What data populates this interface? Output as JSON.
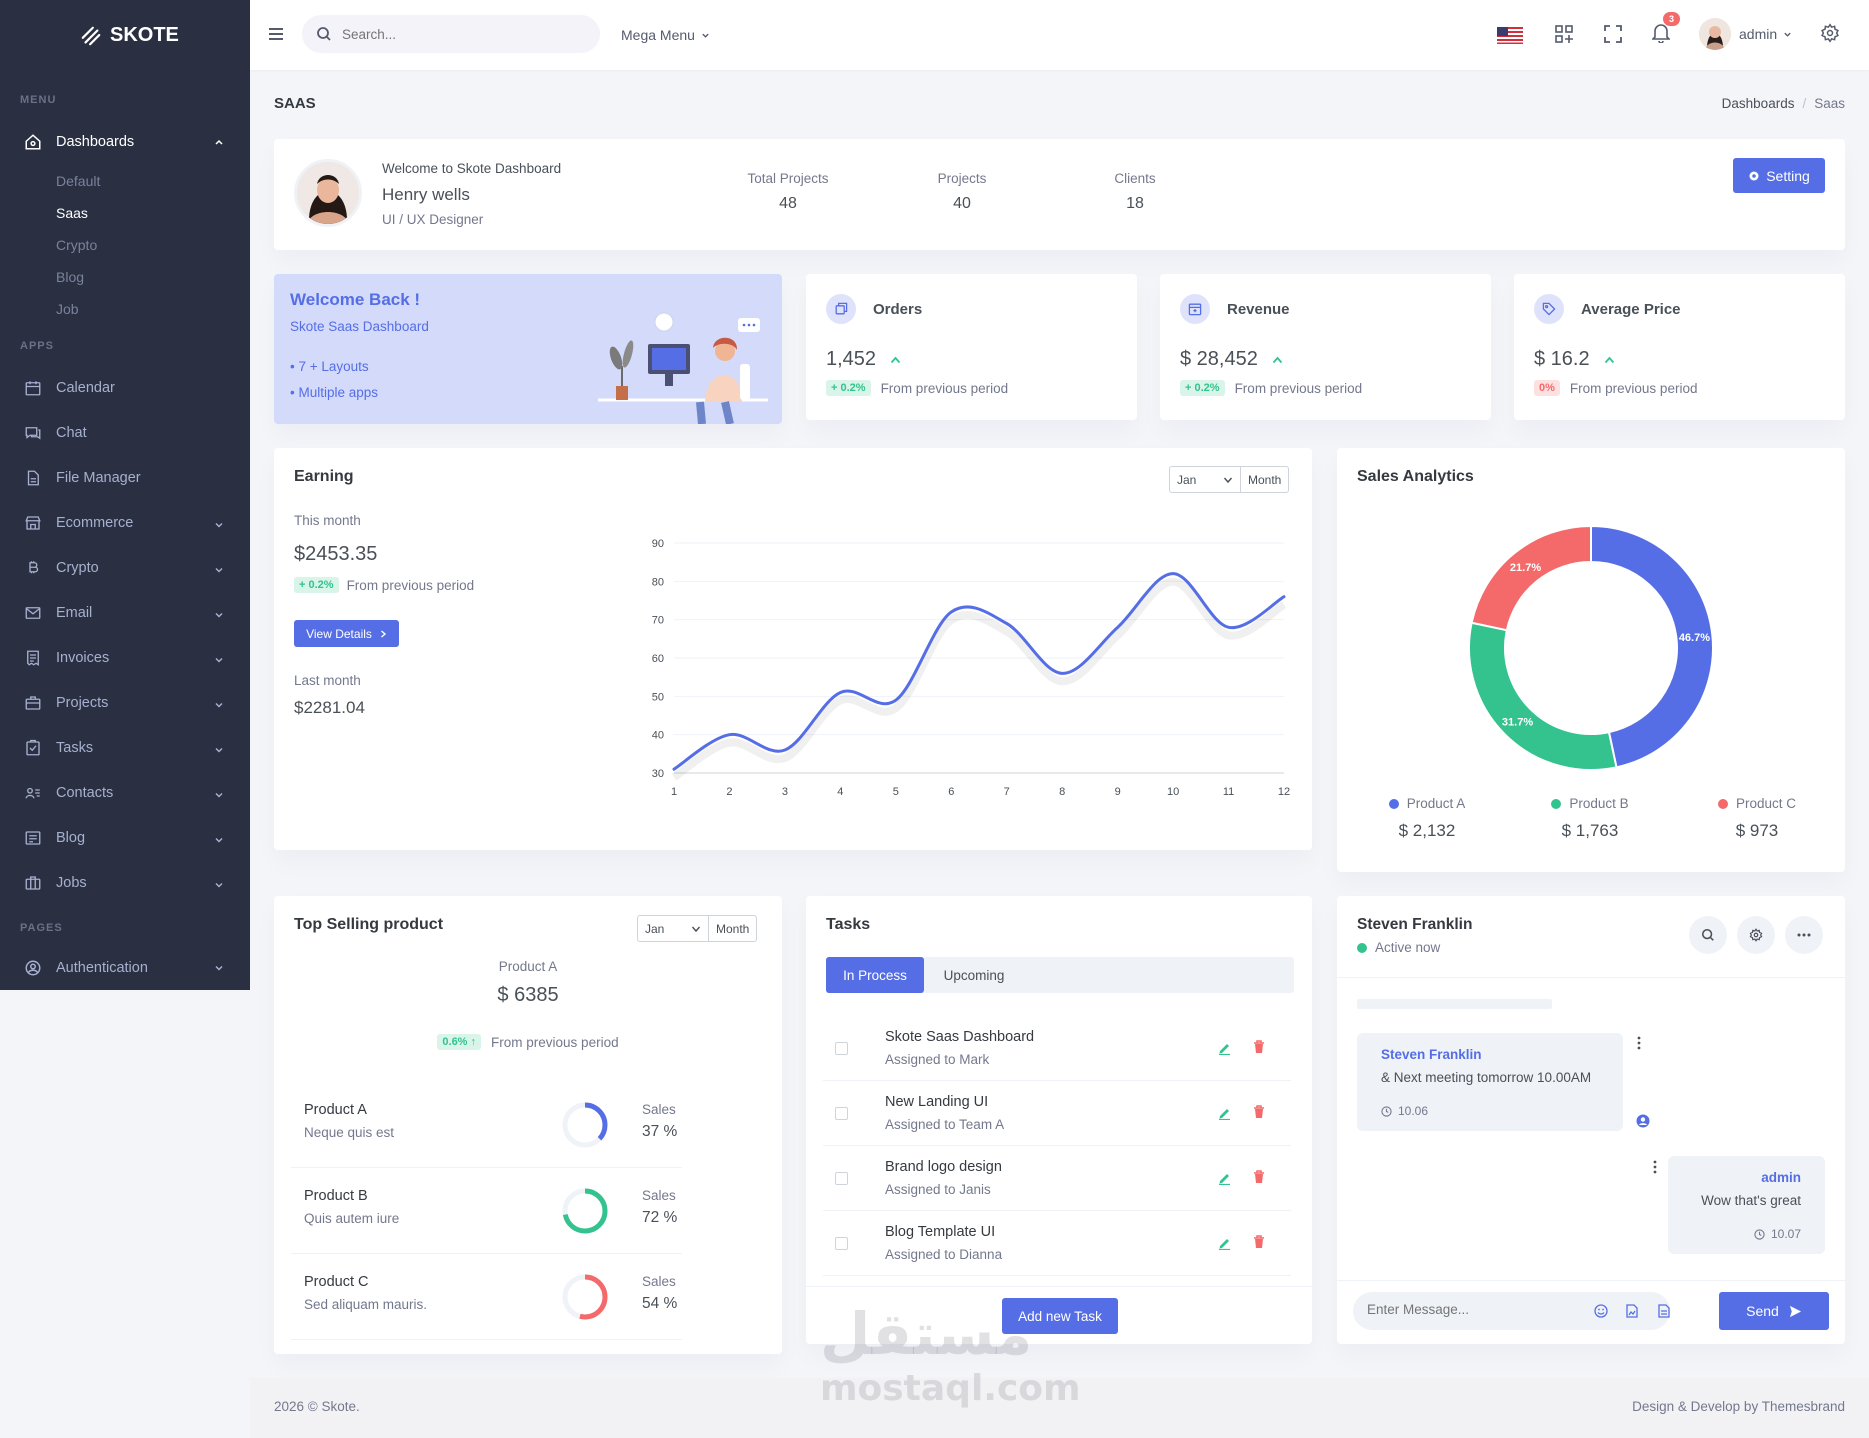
{
  "brand": {
    "name": "SKOTE"
  },
  "sidebar": {
    "menu_title": "MENU",
    "apps_title": "APPS",
    "pages_title": "PAGES",
    "dashboards": {
      "label": "Dashboards",
      "subitems": [
        "Default",
        "Saas",
        "Crypto",
        "Blog",
        "Job"
      ],
      "active_sub": "Saas"
    },
    "apps": [
      {
        "label": "Calendar",
        "icon": "calendar-icon",
        "chevron": false
      },
      {
        "label": "Chat",
        "icon": "chat-icon",
        "chevron": false
      },
      {
        "label": "File Manager",
        "icon": "file-icon",
        "chevron": false
      },
      {
        "label": "Ecommerce",
        "icon": "store-icon",
        "chevron": true
      },
      {
        "label": "Crypto",
        "icon": "bitcoin-icon",
        "chevron": true
      },
      {
        "label": "Email",
        "icon": "envelope-icon",
        "chevron": true
      },
      {
        "label": "Invoices",
        "icon": "receipt-icon",
        "chevron": true
      },
      {
        "label": "Projects",
        "icon": "briefcase-icon",
        "chevron": true
      },
      {
        "label": "Tasks",
        "icon": "task-icon",
        "chevron": true
      },
      {
        "label": "Contacts",
        "icon": "contacts-icon",
        "chevron": true
      },
      {
        "label": "Blog",
        "icon": "blog-icon",
        "chevron": true
      },
      {
        "label": "Jobs",
        "icon": "jobs-icon",
        "chevron": true
      }
    ],
    "pages": [
      {
        "label": "Authentication",
        "icon": "user-circle-icon",
        "chevron": true
      }
    ]
  },
  "topbar": {
    "search_placeholder": "Search...",
    "mega_menu": "Mega Menu",
    "notification_count": "3",
    "user_name": "admin"
  },
  "page": {
    "title": "SAAS",
    "breadcrumb": [
      "Dashboards",
      "Saas"
    ]
  },
  "profile": {
    "welcome": "Welcome to Skote Dashboard",
    "name": "Henry wells",
    "role": "UI / UX Designer",
    "stats": [
      {
        "label": "Total Projects",
        "value": "48"
      },
      {
        "label": "Projects",
        "value": "40"
      },
      {
        "label": "Clients",
        "value": "18"
      }
    ],
    "setting_button": "Setting"
  },
  "welcome_card": {
    "title": "Welcome Back !",
    "subtitle": "Skote Saas Dashboard",
    "items": [
      "7 + Layouts",
      "Multiple apps"
    ]
  },
  "stat_cards": [
    {
      "label": "Orders",
      "value": "1,452",
      "change": "+ 0.2%",
      "change_type": "up",
      "note": "From previous period",
      "icon": "copy-icon"
    },
    {
      "label": "Revenue",
      "value": "$ 28,452",
      "change": "+ 0.2%",
      "change_type": "up",
      "note": "From previous period",
      "icon": "archive-icon"
    },
    {
      "label": "Average Price",
      "value": "$ 16.2",
      "change": "0%",
      "change_type": "flat",
      "note": "From previous period",
      "icon": "tag-icon"
    }
  ],
  "earning": {
    "title": "Earning",
    "select_month": "Jan",
    "select_period": "Month",
    "this_month_label": "This month",
    "this_month_value": "$2453.35",
    "change": "+ 0.2%",
    "note": "From previous period",
    "view_details": "View Details",
    "last_month_label": "Last month",
    "last_month_value": "$2281.04"
  },
  "sales_analytics": {
    "title": "Sales Analytics",
    "legend": [
      {
        "label": "Product A",
        "value": "$ 2,132",
        "color": "#556ee6"
      },
      {
        "label": "Product B",
        "value": "$ 1,763",
        "color": "#34c38f"
      },
      {
        "label": "Product C",
        "value": "$ 973",
        "color": "#f46a6a"
      }
    ]
  },
  "top_selling": {
    "title": "Top Selling product",
    "select_month": "Jan",
    "select_period": "Month",
    "product_label": "Product A",
    "product_value": "$ 6385",
    "change": "0.6% ↑",
    "note": "From previous period",
    "sales_label": "Sales",
    "products": [
      {
        "name": "Product A",
        "desc": "Neque quis est",
        "percent": "37 %",
        "fraction": 0.37,
        "color": "#556ee6"
      },
      {
        "name": "Product B",
        "desc": "Quis autem iure",
        "percent": "72 %",
        "fraction": 0.72,
        "color": "#34c38f"
      },
      {
        "name": "Product C",
        "desc": "Sed aliquam mauris.",
        "percent": "54 %",
        "fraction": 0.54,
        "color": "#f46a6a"
      }
    ]
  },
  "tasks": {
    "title": "Tasks",
    "tabs": [
      "In Process",
      "Upcoming"
    ],
    "items": [
      {
        "title": "Skote Saas Dashboard",
        "assigned": "Assigned to Mark"
      },
      {
        "title": "New Landing UI",
        "assigned": "Assigned to Team A"
      },
      {
        "title": "Brand logo design",
        "assigned": "Assigned to Janis"
      },
      {
        "title": "Blog Template UI",
        "assigned": "Assigned to Dianna"
      }
    ],
    "add_button": "Add new Task"
  },
  "chat": {
    "name": "Steven Franklin",
    "status": "Active now",
    "messages": [
      {
        "sender": "Steven Franklin",
        "text": "& Next meeting tomorrow 10.00AM",
        "time": "10.06"
      },
      {
        "sender": "admin",
        "text": "Wow that's great",
        "time": "10.07"
      }
    ],
    "input_placeholder": "Enter Message...",
    "send_button": "Send"
  },
  "footer": {
    "left": "2026 © Skote.",
    "right": "Design & Develop by Themesbrand"
  },
  "watermark": {
    "arabic": "مستقل",
    "latin": "mostaql.com"
  },
  "chart_data": [
    {
      "type": "line",
      "x": [
        1,
        2,
        3,
        4,
        5,
        6,
        7,
        8,
        9,
        10,
        11,
        12
      ],
      "series": [
        {
          "values": [
            31,
            40,
            36,
            51,
            49,
            72,
            69,
            56,
            68,
            82,
            68,
            76
          ],
          "color": "#556ee6"
        }
      ],
      "ylim": [
        30,
        90
      ],
      "yticks": [
        30,
        40,
        50,
        60,
        70,
        80,
        90
      ],
      "grid": true
    },
    {
      "type": "pie",
      "categories": [
        "Product A",
        "Product B",
        "Product C"
      ],
      "values": [
        46.7,
        31.7,
        21.7
      ],
      "labels": [
        "46.7%",
        "31.7%",
        "21.7%"
      ],
      "colors": [
        "#556ee6",
        "#34c38f",
        "#f46a6a"
      ]
    }
  ]
}
